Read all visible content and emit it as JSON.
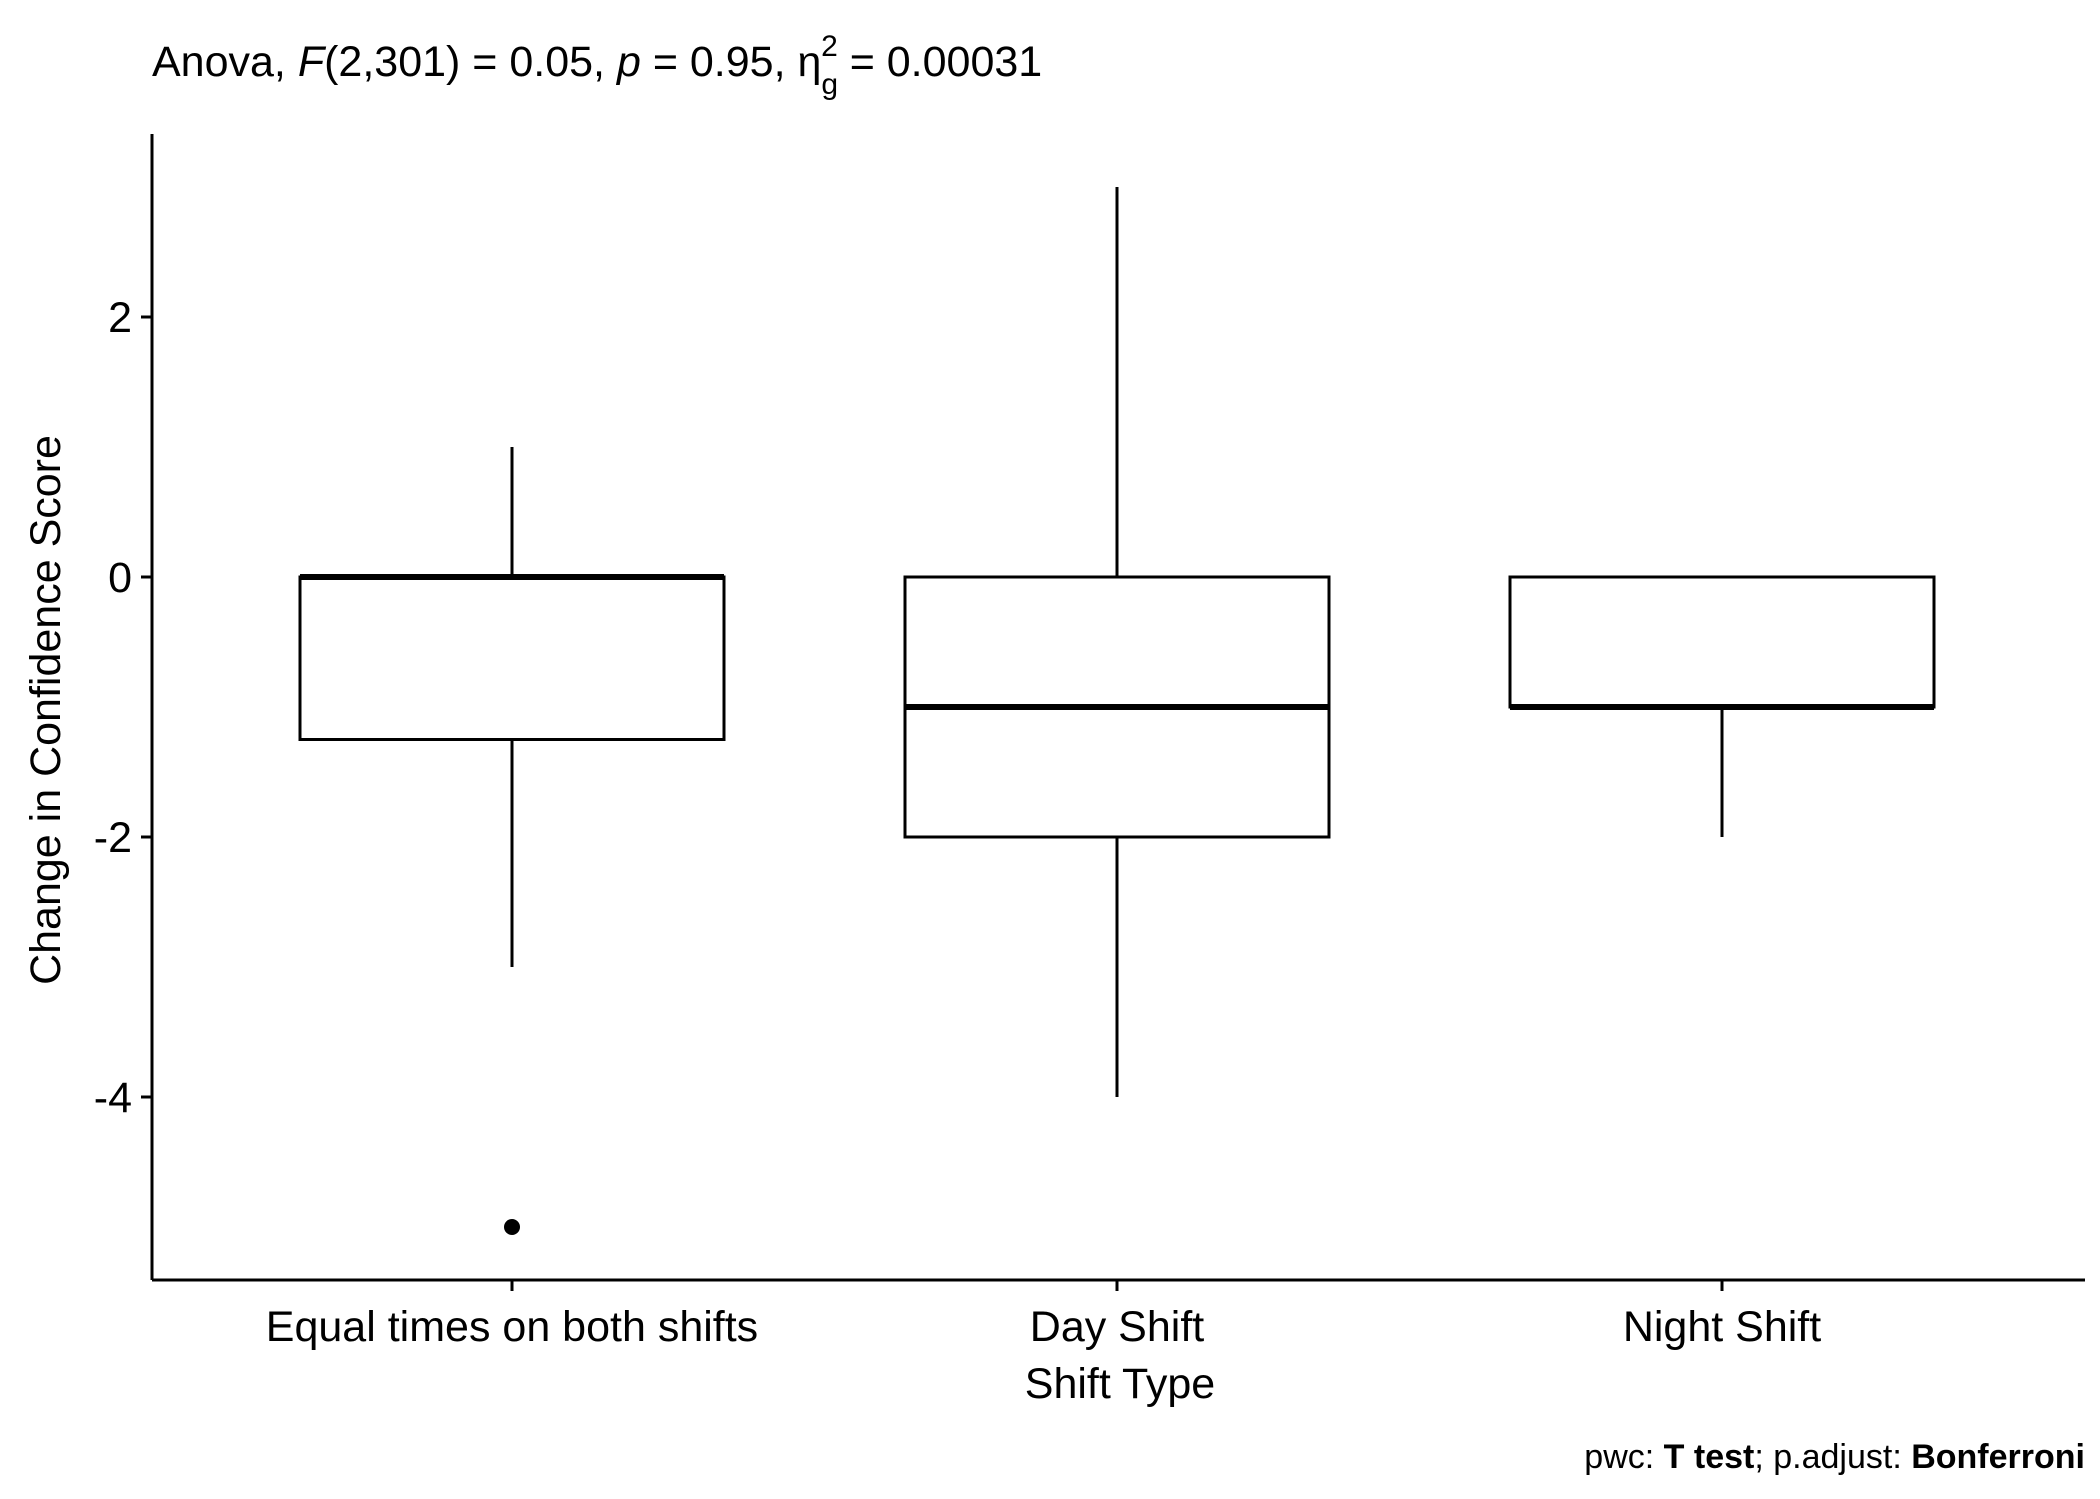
{
  "chart_data": {
    "type": "boxplot",
    "title": {
      "prefix": "Anova, ",
      "f_symbol": "F",
      "f_args": "(2,301) = 0.05, ",
      "p_symbol": "p",
      "p_value": " = 0.95, ",
      "eta_symbol": "η",
      "eta_sub": "g",
      "eta_sup": "2",
      "eta_value": " = 0.00031"
    },
    "xlabel": "Shift Type",
    "ylabel": "Change in Confidence Score",
    "ylim": [
      -5.4,
      3.5
    ],
    "yticks": [
      2,
      0,
      -2,
      -4
    ],
    "ytick_labels": [
      "2",
      "0",
      "-2",
      "-4"
    ],
    "categories": [
      "Equal times on both shifts",
      "Day Shift",
      "Night Shift"
    ],
    "boxes": [
      {
        "category": "Equal times on both shifts",
        "whisker_low": -3,
        "q1": -1.25,
        "median": 0,
        "q3": 0,
        "whisker_high": 1,
        "outliers": [
          -5
        ]
      },
      {
        "category": "Day Shift",
        "whisker_low": -4,
        "q1": -2,
        "median": -1,
        "q3": 0,
        "whisker_high": 3,
        "outliers": []
      },
      {
        "category": "Night Shift",
        "whisker_low": -2,
        "q1": -1,
        "median": -1,
        "q3": 0,
        "whisker_high": 0,
        "outliers": []
      }
    ],
    "caption": {
      "part1": "pwc: ",
      "part2": "T test",
      "part3": "; p.adjust: ",
      "part4": "Bonferroni"
    },
    "grid": false,
    "legend": "none"
  }
}
